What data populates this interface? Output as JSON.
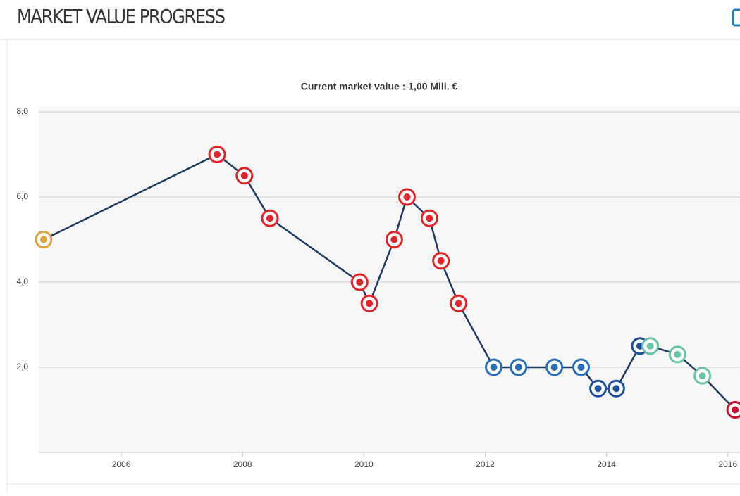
{
  "header": {
    "title": "MARKET VALUE PROGRESS"
  },
  "chart_data": {
    "type": "line",
    "subtitle": "Current market value : 1,00 Mill. €",
    "x": [
      2004.72,
      2007.58,
      2008.03,
      2008.45,
      2009.93,
      2010.09,
      2010.5,
      2010.71,
      2011.08,
      2011.27,
      2011.56,
      2012.14,
      2012.55,
      2013.14,
      2013.58,
      2013.86,
      2014.16,
      2014.55,
      2014.72,
      2015.17,
      2015.58,
      2016.12
    ],
    "series": [
      {
        "color": "#1f3a5f",
        "values": [
          5,
          7,
          6.5,
          5.5,
          4,
          3.5,
          5,
          6,
          5.5,
          4.5,
          3.5,
          2,
          2,
          2,
          2,
          1.5,
          1.5,
          2.5,
          2.5,
          2.3,
          1.8,
          1
        ]
      }
    ],
    "marker_colors": [
      "#d9a441",
      "#e2242b",
      "#e2242b",
      "#e2242b",
      "#e2242b",
      "#e2242b",
      "#e2242b",
      "#e2242b",
      "#e2242b",
      "#e2242b",
      "#e2242b",
      "#2a6db5",
      "#2a6db5",
      "#2a6db5",
      "#2a6db5",
      "#1d4f9c",
      "#1d4f9c",
      "#1d4f9c",
      "#6dc3a6",
      "#6dc3a6",
      "#6dc3a6",
      "#c8102e"
    ],
    "xlim": [
      2004.64,
      2016.2
    ],
    "xticks": [
      2006,
      2008,
      2010,
      2012,
      2014,
      2016
    ],
    "ylim": [
      0,
      8.05
    ],
    "yticks": [
      {
        "value": 2,
        "label": "2,0"
      },
      {
        "value": 4,
        "label": "4,0"
      },
      {
        "value": 6,
        "label": "6,0"
      },
      {
        "value": 8,
        "label": "8,0"
      }
    ],
    "grid": true
  }
}
